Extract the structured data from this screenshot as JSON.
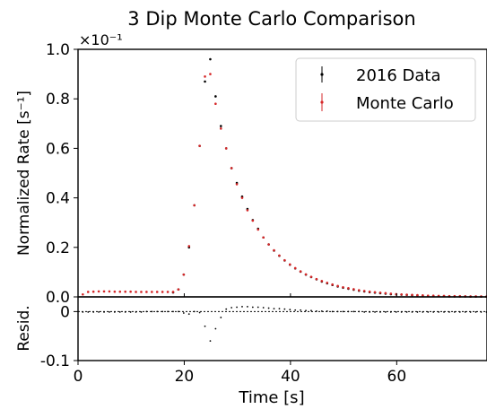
{
  "chart_data": {
    "title": "3 Dip Monte Carlo Comparison",
    "type": "scatter",
    "scale_note": "×10⁻¹",
    "xlabel": "Time [s]",
    "xlim": [
      0,
      77
    ],
    "xticks": [
      0,
      20,
      40,
      60
    ],
    "xtick_labels": [
      "0",
      "20",
      "40",
      "60"
    ],
    "top_panel": {
      "ylabel": "Normalized Rate [s⁻¹]",
      "ylim": [
        0,
        1.0
      ],
      "yticks": [
        0,
        0.2,
        0.4,
        0.6,
        0.8,
        1.0
      ],
      "ytick_labels": [
        "0.0",
        "0.2",
        "0.4",
        "0.6",
        "0.8",
        "1.0"
      ],
      "legend": {
        "position": "top-right",
        "entries": [
          "2016 Data",
          "Monte Carlo"
        ]
      },
      "series": [
        {
          "name": "2016 Data",
          "color": "#000000",
          "x": [
            17.9,
            18.9,
            19.9,
            20.9,
            21.9,
            22.9,
            23.9,
            24.9,
            25.9,
            26.9,
            27.9,
            28.9,
            29.9,
            30.9,
            31.9,
            32.9,
            33.9,
            34.9,
            35.9,
            36.9,
            37.9,
            38.9,
            39.9,
            40.9,
            41.9,
            42.9,
            43.9,
            44.9,
            45.9,
            46.9,
            47.9,
            48.9,
            49.9,
            50.9,
            51.9,
            52.9,
            53.9,
            54.9,
            55.9,
            56.9,
            57.9,
            58.9,
            59.9,
            60.9,
            61.9,
            62.9,
            63.9,
            64.9,
            65.9,
            66.9,
            67.9,
            68.9,
            69.9,
            70.9,
            71.9,
            72.9,
            73.9,
            74.9,
            75.9,
            76.9
          ],
          "y": [
            0.018,
            0.03,
            0.09,
            0.2,
            0.37,
            0.61,
            0.87,
            0.96,
            0.81,
            0.69,
            0.6,
            0.52,
            0.46,
            0.405,
            0.355,
            0.31,
            0.275,
            0.24,
            0.212,
            0.187,
            0.166,
            0.147,
            0.13,
            0.115,
            0.102,
            0.09,
            0.08,
            0.071,
            0.062,
            0.055,
            0.048,
            0.042,
            0.037,
            0.033,
            0.029,
            0.025,
            0.022,
            0.019,
            0.017,
            0.015,
            0.013,
            0.011,
            0.01,
            0.009,
            0.008,
            0.007,
            0.006,
            0.005,
            0.004,
            0.004,
            0.003,
            0.003,
            0.002,
            0.002,
            0.002,
            0.002,
            0.001,
            0.001,
            0.001,
            0.001
          ]
        },
        {
          "name": "Monte Carlo",
          "color": "#d62728",
          "x": [
            0.9,
            1.9,
            2.9,
            3.9,
            4.9,
            5.9,
            6.9,
            7.9,
            8.9,
            9.9,
            10.9,
            11.9,
            12.9,
            13.9,
            14.9,
            15.9,
            16.9,
            17.9,
            18.9,
            19.9,
            20.9,
            21.9,
            22.9,
            23.9,
            24.9,
            25.9,
            26.9,
            27.9,
            28.9,
            29.9,
            30.9,
            31.9,
            32.9,
            33.9,
            34.9,
            35.9,
            36.9,
            37.9,
            38.9,
            39.9,
            40.9,
            41.9,
            42.9,
            43.9,
            44.9,
            45.9,
            46.9,
            47.9,
            48.9,
            49.9,
            50.9,
            51.9,
            52.9,
            53.9,
            54.9,
            55.9,
            56.9,
            57.9,
            58.9,
            59.9,
            60.9,
            61.9,
            62.9,
            63.9,
            64.9,
            65.9,
            66.9,
            67.9,
            68.9,
            69.9,
            70.9,
            71.9,
            72.9,
            73.9,
            74.9,
            75.9,
            76.9
          ],
          "y": [
            0.01,
            0.02,
            0.021,
            0.022,
            0.022,
            0.022,
            0.021,
            0.021,
            0.021,
            0.021,
            0.02,
            0.02,
            0.02,
            0.02,
            0.02,
            0.02,
            0.02,
            0.02,
            0.03,
            0.09,
            0.205,
            0.37,
            0.61,
            0.89,
            0.9,
            0.78,
            0.68,
            0.6,
            0.52,
            0.455,
            0.4,
            0.35,
            0.308,
            0.272,
            0.24,
            0.212,
            0.188,
            0.167,
            0.148,
            0.131,
            0.116,
            0.103,
            0.091,
            0.081,
            0.072,
            0.064,
            0.057,
            0.05,
            0.044,
            0.039,
            0.035,
            0.031,
            0.027,
            0.024,
            0.021,
            0.019,
            0.017,
            0.015,
            0.013,
            0.011,
            0.01,
            0.009,
            0.008,
            0.007,
            0.006,
            0.005,
            0.005,
            0.004,
            0.004,
            0.003,
            0.003,
            0.003,
            0.002,
            0.002,
            0.002,
            0.002,
            0.001
          ]
        }
      ]
    },
    "bottom_panel": {
      "ylabel": "Resid.",
      "ylim": [
        -0.1,
        0.03
      ],
      "yticks": [
        0,
        -0.1
      ],
      "ytick_labels": [
        "0",
        "-0.1"
      ],
      "series": [
        {
          "name": "Residuals",
          "color": "#000000",
          "x": [
            0.9,
            1.9,
            2.9,
            3.9,
            4.9,
            5.9,
            6.9,
            7.9,
            8.9,
            9.9,
            10.9,
            11.9,
            12.9,
            13.9,
            14.9,
            15.9,
            16.9,
            17.9,
            18.9,
            19.9,
            20.9,
            21.9,
            22.9,
            23.9,
            24.9,
            25.9,
            26.9,
            27.9,
            28.9,
            29.9,
            30.9,
            31.9,
            32.9,
            33.9,
            34.9,
            35.9,
            36.9,
            37.9,
            38.9,
            39.9,
            40.9,
            41.9,
            42.9,
            43.9,
            44.9,
            45.9,
            46.9,
            47.9,
            48.9,
            49.9,
            50.9,
            51.9,
            52.9,
            53.9,
            54.9,
            55.9,
            56.9,
            57.9,
            58.9,
            59.9,
            60.9,
            61.9,
            62.9,
            63.9,
            64.9,
            65.9,
            66.9,
            67.9,
            68.9,
            69.9,
            70.9,
            71.9,
            72.9,
            73.9,
            74.9,
            75.9,
            76.9
          ],
          "y": [
            -0.001,
            -0.001,
            -0.001,
            -0.001,
            -0.001,
            -0.001,
            -0.001,
            -0.001,
            -0.001,
            -0.001,
            -0.001,
            -0.001,
            0.0,
            0.0,
            0.0,
            0.0,
            0.0,
            0.0,
            0.0,
            -0.003,
            -0.005,
            0.0,
            -0.002,
            -0.03,
            -0.06,
            -0.035,
            -0.012,
            0.005,
            0.008,
            0.009,
            0.01,
            0.01,
            0.009,
            0.009,
            0.008,
            0.007,
            0.006,
            0.006,
            0.005,
            0.004,
            0.003,
            0.003,
            0.002,
            0.002,
            0.001,
            0.001,
            0.001,
            0.0,
            0.0,
            0.0,
            0.0,
            0.0,
            0.0,
            -0.001,
            -0.001,
            -0.001,
            -0.001,
            -0.001,
            -0.001,
            -0.001,
            -0.001,
            -0.001,
            -0.001,
            -0.001,
            -0.001,
            -0.001,
            -0.001,
            -0.001,
            -0.001,
            -0.001,
            -0.001,
            -0.001,
            -0.001,
            -0.001,
            -0.001,
            -0.001,
            -0.001
          ]
        }
      ]
    }
  }
}
